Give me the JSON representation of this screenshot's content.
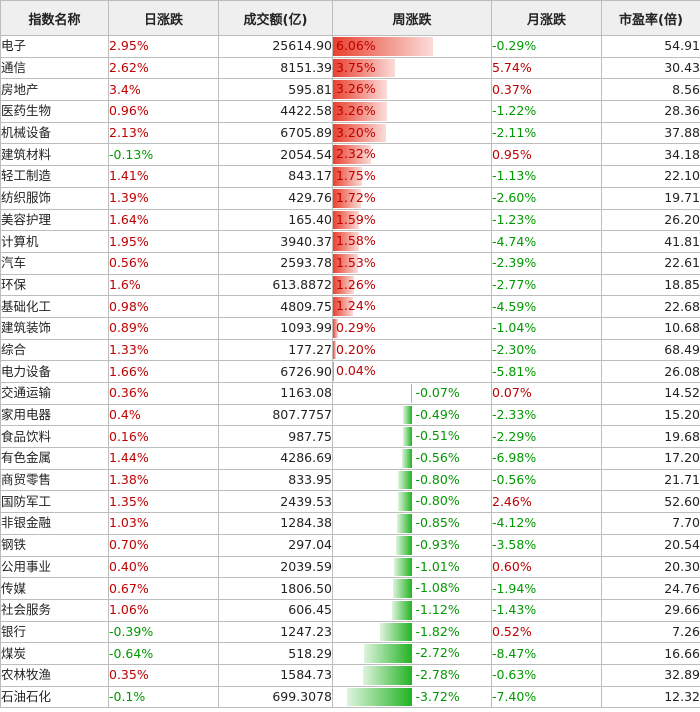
{
  "headers": [
    "指数名称",
    "日涨跌",
    "成交额(亿)",
    "周涨跌",
    "月涨跌",
    "市盈率(倍)"
  ],
  "rows": [
    {
      "name": "电子",
      "day": "2.95%",
      "volume": "25614.90",
      "week": "6.06%",
      "week_value": 6.06,
      "month": "-0.29%",
      "pe": "54.91"
    },
    {
      "name": "通信",
      "day": "2.62%",
      "volume": "8151.39",
      "week": "3.75%",
      "week_value": 3.75,
      "month": "5.74%",
      "pe": "30.43"
    },
    {
      "name": "房地产",
      "day": "3.4%",
      "volume": "595.81",
      "week": "3.26%",
      "week_value": 3.26,
      "month": "0.37%",
      "pe": "8.56"
    },
    {
      "name": "医药生物",
      "day": "0.96%",
      "volume": "4422.58",
      "week": "3.26%",
      "week_value": 3.26,
      "month": "-1.22%",
      "pe": "28.36"
    },
    {
      "name": "机械设备",
      "day": "2.13%",
      "volume": "6705.89",
      "week": "3.20%",
      "week_value": 3.2,
      "month": "-2.11%",
      "pe": "37.88"
    },
    {
      "name": "建筑材料",
      "day": "-0.13%",
      "volume": "2054.54",
      "week": "2.32%",
      "week_value": 2.32,
      "month": "0.95%",
      "pe": "34.18"
    },
    {
      "name": "轻工制造",
      "day": "1.41%",
      "volume": "843.17",
      "week": "1.75%",
      "week_value": 1.75,
      "month": "-1.13%",
      "pe": "22.10"
    },
    {
      "name": "纺织服饰",
      "day": "1.39%",
      "volume": "429.76",
      "week": "1.72%",
      "week_value": 1.72,
      "month": "-2.60%",
      "pe": "19.71"
    },
    {
      "name": "美容护理",
      "day": "1.64%",
      "volume": "165.40",
      "week": "1.59%",
      "week_value": 1.59,
      "month": "-1.23%",
      "pe": "26.20"
    },
    {
      "name": "计算机",
      "day": "1.95%",
      "volume": "3940.37",
      "week": "1.58%",
      "week_value": 1.58,
      "month": "-4.74%",
      "pe": "41.81"
    },
    {
      "name": "汽车",
      "day": "0.56%",
      "volume": "2593.78",
      "week": "1.53%",
      "week_value": 1.53,
      "month": "-2.39%",
      "pe": "22.61"
    },
    {
      "name": "环保",
      "day": "1.6%",
      "volume": "613.8872",
      "week": "1.26%",
      "week_value": 1.26,
      "month": "-2.77%",
      "pe": "18.85"
    },
    {
      "name": "基础化工",
      "day": "0.98%",
      "volume": "4809.75",
      "week": "1.24%",
      "week_value": 1.24,
      "month": "-4.59%",
      "pe": "22.68"
    },
    {
      "name": "建筑装饰",
      "day": "0.89%",
      "volume": "1093.99",
      "week": "0.29%",
      "week_value": 0.29,
      "month": "-1.04%",
      "pe": "10.68"
    },
    {
      "name": "综合",
      "day": "1.33%",
      "volume": "177.27",
      "week": "0.20%",
      "week_value": 0.2,
      "month": "-2.30%",
      "pe": "68.49"
    },
    {
      "name": "电力设备",
      "day": "1.66%",
      "volume": "6726.90",
      "week": "0.04%",
      "week_value": 0.04,
      "month": "-5.81%",
      "pe": "26.08"
    },
    {
      "name": "交通运输",
      "day": "0.36%",
      "volume": "1163.08",
      "week": "-0.07%",
      "week_value": -0.07,
      "month": "0.07%",
      "pe": "14.52"
    },
    {
      "name": "家用电器",
      "day": "0.4%",
      "volume": "807.7757",
      "week": "-0.49%",
      "week_value": -0.49,
      "month": "-2.33%",
      "pe": "15.20"
    },
    {
      "name": "食品饮料",
      "day": "0.16%",
      "volume": "987.75",
      "week": "-0.51%",
      "week_value": -0.51,
      "month": "-2.29%",
      "pe": "19.68"
    },
    {
      "name": "有色金属",
      "day": "1.44%",
      "volume": "4286.69",
      "week": "-0.56%",
      "week_value": -0.56,
      "month": "-6.98%",
      "pe": "17.20"
    },
    {
      "name": "商贸零售",
      "day": "1.38%",
      "volume": "833.95",
      "week": "-0.80%",
      "week_value": -0.8,
      "month": "-0.56%",
      "pe": "21.71"
    },
    {
      "name": "国防军工",
      "day": "1.35%",
      "volume": "2439.53",
      "week": "-0.80%",
      "week_value": -0.8,
      "month": "2.46%",
      "pe": "52.60"
    },
    {
      "name": "非银金融",
      "day": "1.03%",
      "volume": "1284.38",
      "week": "-0.85%",
      "week_value": -0.85,
      "month": "-4.12%",
      "pe": "7.70"
    },
    {
      "name": "钢铁",
      "day": "0.70%",
      "volume": "297.04",
      "week": "-0.93%",
      "week_value": -0.93,
      "month": "-3.58%",
      "pe": "20.54"
    },
    {
      "name": "公用事业",
      "day": "0.40%",
      "volume": "2039.59",
      "week": "-1.01%",
      "week_value": -1.01,
      "month": "0.60%",
      "pe": "20.30"
    },
    {
      "name": "传媒",
      "day": "0.67%",
      "volume": "1806.50",
      "week": "-1.08%",
      "week_value": -1.08,
      "month": "-1.94%",
      "pe": "24.76"
    },
    {
      "name": "社会服务",
      "day": "1.06%",
      "volume": "606.45",
      "week": "-1.12%",
      "week_value": -1.12,
      "month": "-1.43%",
      "pe": "29.66"
    },
    {
      "name": "银行",
      "day": "-0.39%",
      "volume": "1247.23",
      "week": "-1.82%",
      "week_value": -1.82,
      "month": "0.52%",
      "pe": "7.26"
    },
    {
      "name": "煤炭",
      "day": "-0.64%",
      "volume": "518.29",
      "week": "-2.72%",
      "week_value": -2.72,
      "month": "-8.47%",
      "pe": "16.66"
    },
    {
      "name": "农林牧渔",
      "day": "0.35%",
      "volume": "1584.73",
      "week": "-2.78%",
      "week_value": -2.78,
      "month": "-0.63%",
      "pe": "32.89"
    },
    {
      "name": "石油石化",
      "day": "-0.1%",
      "volume": "699.3078",
      "week": "-3.72%",
      "week_value": -3.72,
      "month": "-7.40%",
      "pe": "12.32"
    }
  ],
  "colors": {
    "positive": "#c00000",
    "negative": "#009900",
    "bar_up": "#e8412f",
    "bar_down": "#22b322",
    "header_bg": "#efefef",
    "border": "#bdbdbd"
  }
}
